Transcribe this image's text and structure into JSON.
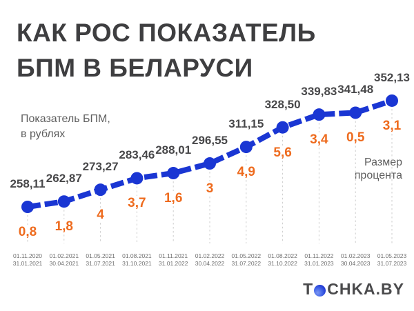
{
  "title": {
    "line1": "КАК РОС ПОКАЗАТЕЛЬ",
    "line2": "БПМ В БЕЛАРУСИ"
  },
  "labels": {
    "y_axis_line1": "Показатель БПМ,",
    "y_axis_line2": "в рублях",
    "percent_line1": "Размер",
    "percent_line2": "процента"
  },
  "logo": {
    "part1": "T",
    "part2": "CHKA.BY"
  },
  "chart_data": {
    "type": "line",
    "title": "КАК РОС ПОКАЗАТЕЛЬ БПМ В БЕЛАРУСИ",
    "ylabel": "Показатель БПМ, в рублях",
    "annotation_label": "Размер процента",
    "categories": [
      [
        "01.11.2020",
        "31.01.2021"
      ],
      [
        "01.02.2021",
        "30.04.2021"
      ],
      [
        "01.05.2021",
        "31.07.2021"
      ],
      [
        "01.08.2021",
        "31.10.2021"
      ],
      [
        "01.11.2021",
        "31.01.2022"
      ],
      [
        "01.02.2022",
        "30.04.2022"
      ],
      [
        "01.05.2022",
        "31.07.2022"
      ],
      [
        "01.08.2022",
        "31.10.2022"
      ],
      [
        "01.11.2022",
        "31.01.2023"
      ],
      [
        "01.02.2023",
        "30.04.2023"
      ],
      [
        "01.05.2023",
        "31.07.2023"
      ]
    ],
    "values": [
      258.11,
      262.87,
      273.27,
      283.46,
      288.01,
      296.55,
      311.15,
      328.5,
      339.83,
      341.48,
      352.13
    ],
    "value_labels": [
      "258,11",
      "262,87",
      "273,27",
      "283,46",
      "288,01",
      "296,55",
      "311,15",
      "328,50",
      "339,83",
      "341,48",
      "352,13"
    ],
    "percent_labels": [
      "0,8",
      "1,8",
      "4",
      "3,7",
      "1,6",
      "3",
      "4,9",
      "5,6",
      "3,4",
      "0,5",
      "3,1"
    ],
    "ylim": [
      250,
      360
    ],
    "grid": "vertical-dashed-guides",
    "legend_position": "none",
    "line_color": "#1a36d3",
    "percent_color": "#ee6b1e",
    "value_label_color": "#48484a",
    "guide_color": "#cccccc"
  }
}
